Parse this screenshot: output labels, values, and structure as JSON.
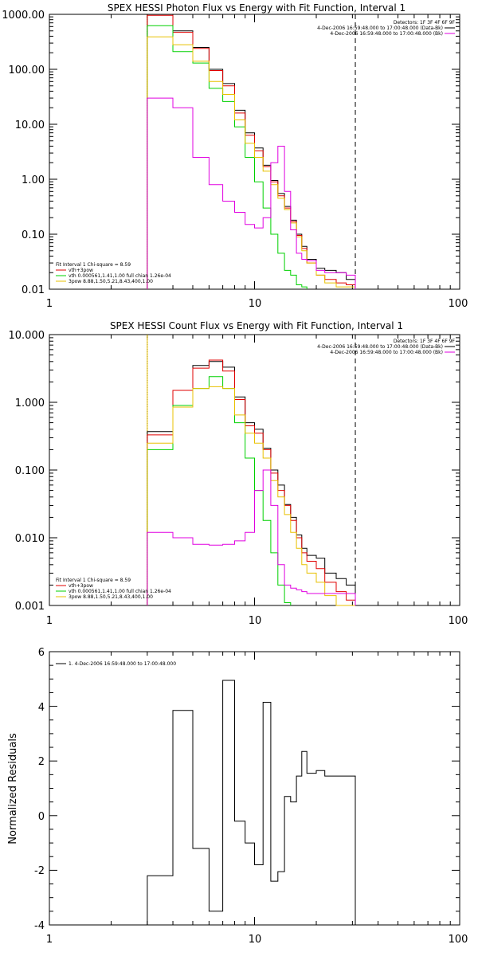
{
  "chart_data": [
    {
      "type": "line",
      "title": "SPEX HESSI Photon Flux vs Energy with Fit Function, Interval 1",
      "xlabel": "",
      "ylabel": "",
      "xscale": "log",
      "yscale": "log",
      "xlim": [
        1,
        100
      ],
      "ylim": [
        0.01,
        1000
      ],
      "x_tick_labels": [
        "1",
        "10",
        "100"
      ],
      "y_tick_labels": [
        "0.01",
        "0.10",
        "1.00",
        "10.00",
        "100.00",
        "1000.00"
      ],
      "bin_edges": [
        3.0,
        3.5,
        4.0,
        5.0,
        6.0,
        7.0,
        8.0,
        9.0,
        10.0,
        11.0,
        12.0,
        13.0,
        14.0,
        15.0,
        16.0,
        17.0,
        18.0,
        20.0,
        22.0,
        25.0,
        28.0,
        31.0
      ],
      "vertical_lines": [
        {
          "x": 3.0,
          "style": "dotted",
          "color": "#000000"
        },
        {
          "x": 3.0,
          "style": "solid",
          "color": "#e8c000"
        },
        {
          "x": 31.0,
          "style": "dashed",
          "color": "#000000"
        }
      ],
      "series": [
        {
          "name": "",
          "color": "#000000",
          "values": [
            1000,
            1000,
            500,
            250,
            100,
            55,
            18,
            7,
            3.7,
            1.8,
            0.95,
            0.55,
            0.32,
            0.18,
            0.1,
            0.06,
            0.035,
            0.024,
            0.022,
            0.02,
            0.015
          ]
        },
        {
          "name": "vth+3pow",
          "color": "#e00000",
          "values": [
            960,
            960,
            470,
            240,
            95,
            50,
            16,
            6.3,
            3.3,
            1.7,
            0.9,
            0.5,
            0.3,
            0.17,
            0.095,
            0.055,
            0.03,
            0.018,
            0.015,
            0.013,
            0.012
          ]
        },
        {
          "name": "vth 0.000561,1.41,1.00  full chian 1.26e-04",
          "color": "#00d000",
          "values": [
            620,
            620,
            210,
            130,
            45,
            26,
            9,
            2.5,
            0.9,
            0.3,
            0.1,
            0.045,
            0.022,
            0.018,
            0.012,
            0.011,
            0.0,
            0.0,
            0.0,
            0.0,
            0.0
          ]
        },
        {
          "name": "3pow 8.88,1.50,5.21,8.43,400,1.00",
          "color": "#e8c000",
          "values": [
            390,
            390,
            280,
            140,
            60,
            35,
            12,
            4.5,
            2.5,
            1.4,
            0.8,
            0.45,
            0.28,
            0.16,
            0.09,
            0.05,
            0.03,
            0.018,
            0.013,
            0.011,
            0.011
          ]
        },
        {
          "name": "",
          "color": "#e000e0",
          "values": [
            30,
            30,
            20,
            2.5,
            0.8,
            0.4,
            0.25,
            0.15,
            0.13,
            0.2,
            2.0,
            4.0,
            0.6,
            0.12,
            0.045,
            0.035,
            0.033,
            0.022,
            0.02,
            0.02,
            0.018
          ]
        }
      ],
      "legend_right": {
        "placement": "top-right",
        "header": "Detectors: 1F 3F 4F 6F 9F",
        "entries": [
          {
            "text": "4-Dec-2006 16:59:48.000 to 17:00:48.000 (Data-Bk)",
            "color": "#000000"
          },
          {
            "text": "4-Dec-2006 16:59:48.000 to 17:00:48.000 (Bk)",
            "color": "#e000e0"
          }
        ]
      },
      "legend_left": {
        "placement": "bottom-left",
        "header": "Fit Interval 1    Chi-square = 8.59"
      }
    },
    {
      "type": "line",
      "title": "SPEX HESSI Count Flux vs Energy with Fit Function, Interval 1",
      "xlabel": "",
      "ylabel": "",
      "xscale": "log",
      "yscale": "log",
      "xlim": [
        1,
        100
      ],
      "ylim": [
        0.001,
        10
      ],
      "x_tick_labels": [
        "1",
        "10",
        "100"
      ],
      "y_tick_labels": [
        "0.001",
        "0.010",
        "0.100",
        "1.000",
        "10.000"
      ],
      "bin_edges": [
        3.0,
        3.5,
        4.0,
        5.0,
        6.0,
        7.0,
        8.0,
        9.0,
        10.0,
        11.0,
        12.0,
        13.0,
        14.0,
        15.0,
        16.0,
        17.0,
        18.0,
        20.0,
        22.0,
        25.0,
        28.0,
        31.0
      ],
      "vertical_lines": [
        {
          "x": 3.0,
          "style": "dotted",
          "color": "#000000"
        },
        {
          "x": 3.0,
          "style": "solid",
          "color": "#e8c000"
        },
        {
          "x": 31.0,
          "style": "dashed",
          "color": "#000000"
        }
      ],
      "series": [
        {
          "name": "",
          "color": "#000000",
          "values": [
            0.37,
            0.37,
            1.5,
            3.5,
            4.0,
            3.3,
            1.2,
            0.5,
            0.4,
            0.21,
            0.1,
            0.06,
            0.031,
            0.02,
            0.011,
            0.007,
            0.0055,
            0.005,
            0.003,
            0.0025,
            0.002
          ]
        },
        {
          "name": "vth+3pow",
          "color": "#e00000",
          "values": [
            0.33,
            0.33,
            1.5,
            3.2,
            4.2,
            2.9,
            1.1,
            0.45,
            0.35,
            0.2,
            0.09,
            0.05,
            0.03,
            0.018,
            0.01,
            0.006,
            0.0045,
            0.0035,
            0.0022,
            0.0016,
            0.0012
          ]
        },
        {
          "name": "vth 0.000561,1.41,1.00  full chian 1.26e-04",
          "color": "#00d000",
          "values": [
            0.2,
            0.2,
            0.9,
            1.6,
            2.4,
            1.6,
            0.5,
            0.15,
            0.05,
            0.018,
            0.006,
            0.002,
            0.0011,
            0.0,
            0.0,
            0.0,
            0.0,
            0.0,
            0.0,
            0.0,
            0.0
          ]
        },
        {
          "name": "3pow 8.88,1.50,5.21,8.43,400,1.00",
          "color": "#e8c000",
          "values": [
            0.25,
            0.25,
            0.85,
            1.6,
            1.7,
            1.6,
            0.65,
            0.35,
            0.25,
            0.15,
            0.07,
            0.04,
            0.022,
            0.012,
            0.007,
            0.004,
            0.003,
            0.0022,
            0.0014,
            0.001,
            0.001
          ]
        },
        {
          "name": "",
          "color": "#e000e0",
          "values": [
            0.012,
            0.012,
            0.01,
            0.008,
            0.0078,
            0.008,
            0.009,
            0.012,
            0.05,
            0.1,
            0.03,
            0.004,
            0.002,
            0.0018,
            0.0017,
            0.0016,
            0.0015,
            0.0015,
            0.0015,
            0.0015,
            0.0015
          ]
        }
      ],
      "legend_right": {
        "placement": "top-right",
        "header": "Detectors: 1F 3F 4F 6F 9F",
        "entries": [
          {
            "text": "4-Dec-2006 16:59:48.000 to 17:00:48.000 (Data-Bk)",
            "color": "#000000"
          },
          {
            "text": "4-Dec-2006 16:59:48.000 to 17:00:48.000 (Bk)",
            "color": "#e000e0"
          }
        ]
      },
      "legend_left": {
        "placement": "bottom-left",
        "header": "Fit Interval 1    Chi-square = 8.59"
      }
    },
    {
      "type": "line",
      "title": "",
      "xlabel": "",
      "ylabel": "Normalized Residuals",
      "xscale": "log",
      "yscale": "linear",
      "xlim": [
        1,
        100
      ],
      "ylim": [
        -4,
        6
      ],
      "x_tick_labels": [
        "1",
        "10",
        "100"
      ],
      "y_tick_labels": [
        "-4",
        "-2",
        "0",
        "2",
        "4",
        "6"
      ],
      "bin_edges": [
        3.0,
        3.5,
        4.0,
        5.0,
        6.0,
        7.0,
        8.0,
        9.0,
        10.0,
        11.0,
        12.0,
        13.0,
        14.0,
        15.0,
        16.0,
        17.0,
        18.0,
        20.0,
        22.0,
        25.0,
        28.0,
        31.0
      ],
      "series": [
        {
          "name": "1.  4-Dec-2006 16:59:48.000 to 17:00:48.000",
          "color": "#000000",
          "values": [
            -2.2,
            -2.2,
            3.85,
            -1.2,
            -3.5,
            4.95,
            -0.2,
            -1.0,
            -1.8,
            4.15,
            -2.4,
            -2.05,
            0.7,
            0.5,
            1.45,
            2.35,
            1.55,
            1.65,
            1.45,
            1.45,
            1.45
          ]
        }
      ],
      "legend_left": {
        "placement": "top-left"
      }
    }
  ]
}
